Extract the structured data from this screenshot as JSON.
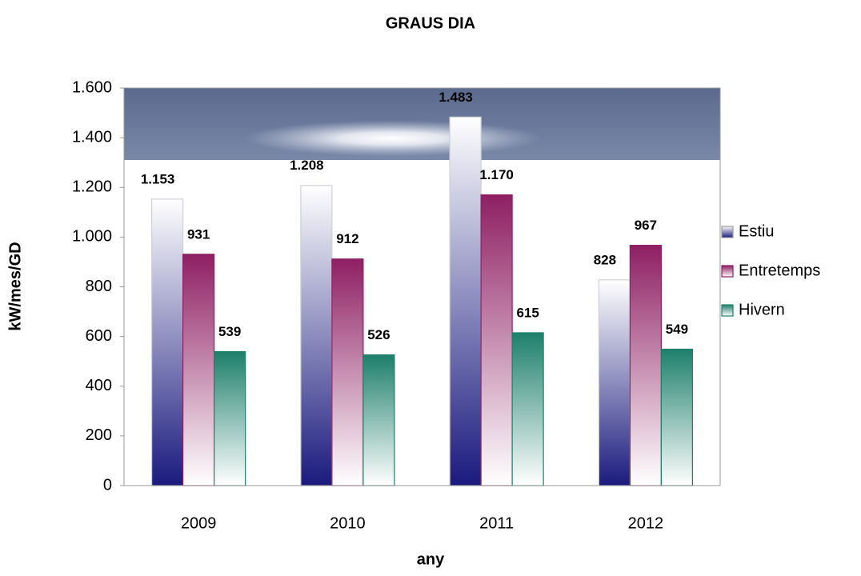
{
  "chart_data": {
    "type": "bar",
    "title": "GRAUS DIA",
    "x_label": "any",
    "y_label": "kW/mes/GD",
    "categories": [
      "2009",
      "2010",
      "2011",
      "2012"
    ],
    "series": [
      {
        "name": "Estiu",
        "color": "#1a1a7e",
        "values": [
          1153,
          1208,
          1483,
          828
        ],
        "value_labels": [
          "1.153",
          "1.208",
          "1.483",
          "828"
        ]
      },
      {
        "name": "Entretemps",
        "color": "#8e1f63",
        "values": [
          931,
          912,
          1170,
          967
        ],
        "value_labels": [
          "931",
          "912",
          "1.170",
          "967"
        ]
      },
      {
        "name": "Hivern",
        "color": "#1d7f6b",
        "values": [
          539,
          526,
          615,
          549
        ],
        "value_labels": [
          "539",
          "526",
          "615",
          "549"
        ]
      }
    ],
    "ylim": [
      0,
      1600
    ],
    "yticks": [
      0,
      200,
      400,
      600,
      800,
      {
        "value": 1000,
        "label": "1.000"
      },
      {
        "value": 1200,
        "label": "1.200"
      },
      {
        "value": 1400,
        "label": "1.400"
      },
      {
        "value": 1600,
        "label": "1.600"
      }
    ],
    "grid": false,
    "legend": "right"
  }
}
